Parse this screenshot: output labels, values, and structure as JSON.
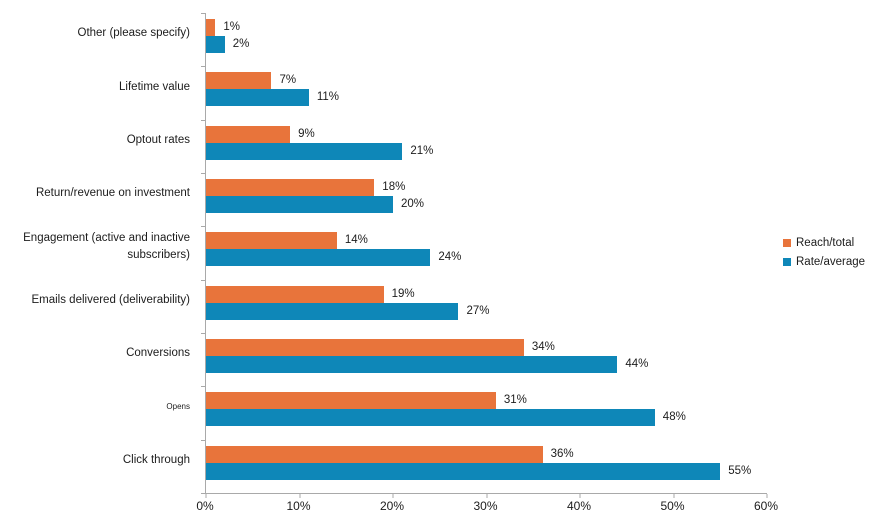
{
  "chart_data": {
    "type": "bar",
    "orientation": "horizontal",
    "title": "",
    "categories": [
      "Other (please specify)",
      "Lifetime value",
      "Optout rates",
      "Return/revenue on investment",
      "Engagement (active and inactive subscribers)",
      "Emails delivered (deliverability)",
      "Conversions",
      "Opens",
      "Click through"
    ],
    "series": [
      {
        "name": "Reach/total",
        "color": "#E8743B",
        "values": [
          1,
          7,
          9,
          18,
          14,
          19,
          34,
          31,
          36
        ],
        "labels": [
          "1%",
          "7%",
          "9%",
          "18%",
          "14%",
          "19%",
          "34%",
          "31%",
          "36%"
        ]
      },
      {
        "name": "Rate/average",
        "color": "#0E87B8",
        "values": [
          2,
          11,
          21,
          20,
          24,
          27,
          44,
          48,
          55
        ],
        "labels": [
          "2%",
          "11%",
          "21%",
          "20%",
          "24%",
          "27%",
          "44%",
          "48%",
          "55%"
        ]
      }
    ],
    "x_axis": {
      "min": 0,
      "max": 60,
      "tick_step": 10,
      "tick_labels": [
        "0%",
        "10%",
        "20%",
        "30%",
        "40%",
        "50%",
        "60%"
      ]
    },
    "legend": {
      "position": "right",
      "items": [
        "Reach/total",
        "Rate/average"
      ]
    },
    "grid": "off",
    "axis_color": "#A9A9A9",
    "text_color": "#1C1C1C"
  }
}
